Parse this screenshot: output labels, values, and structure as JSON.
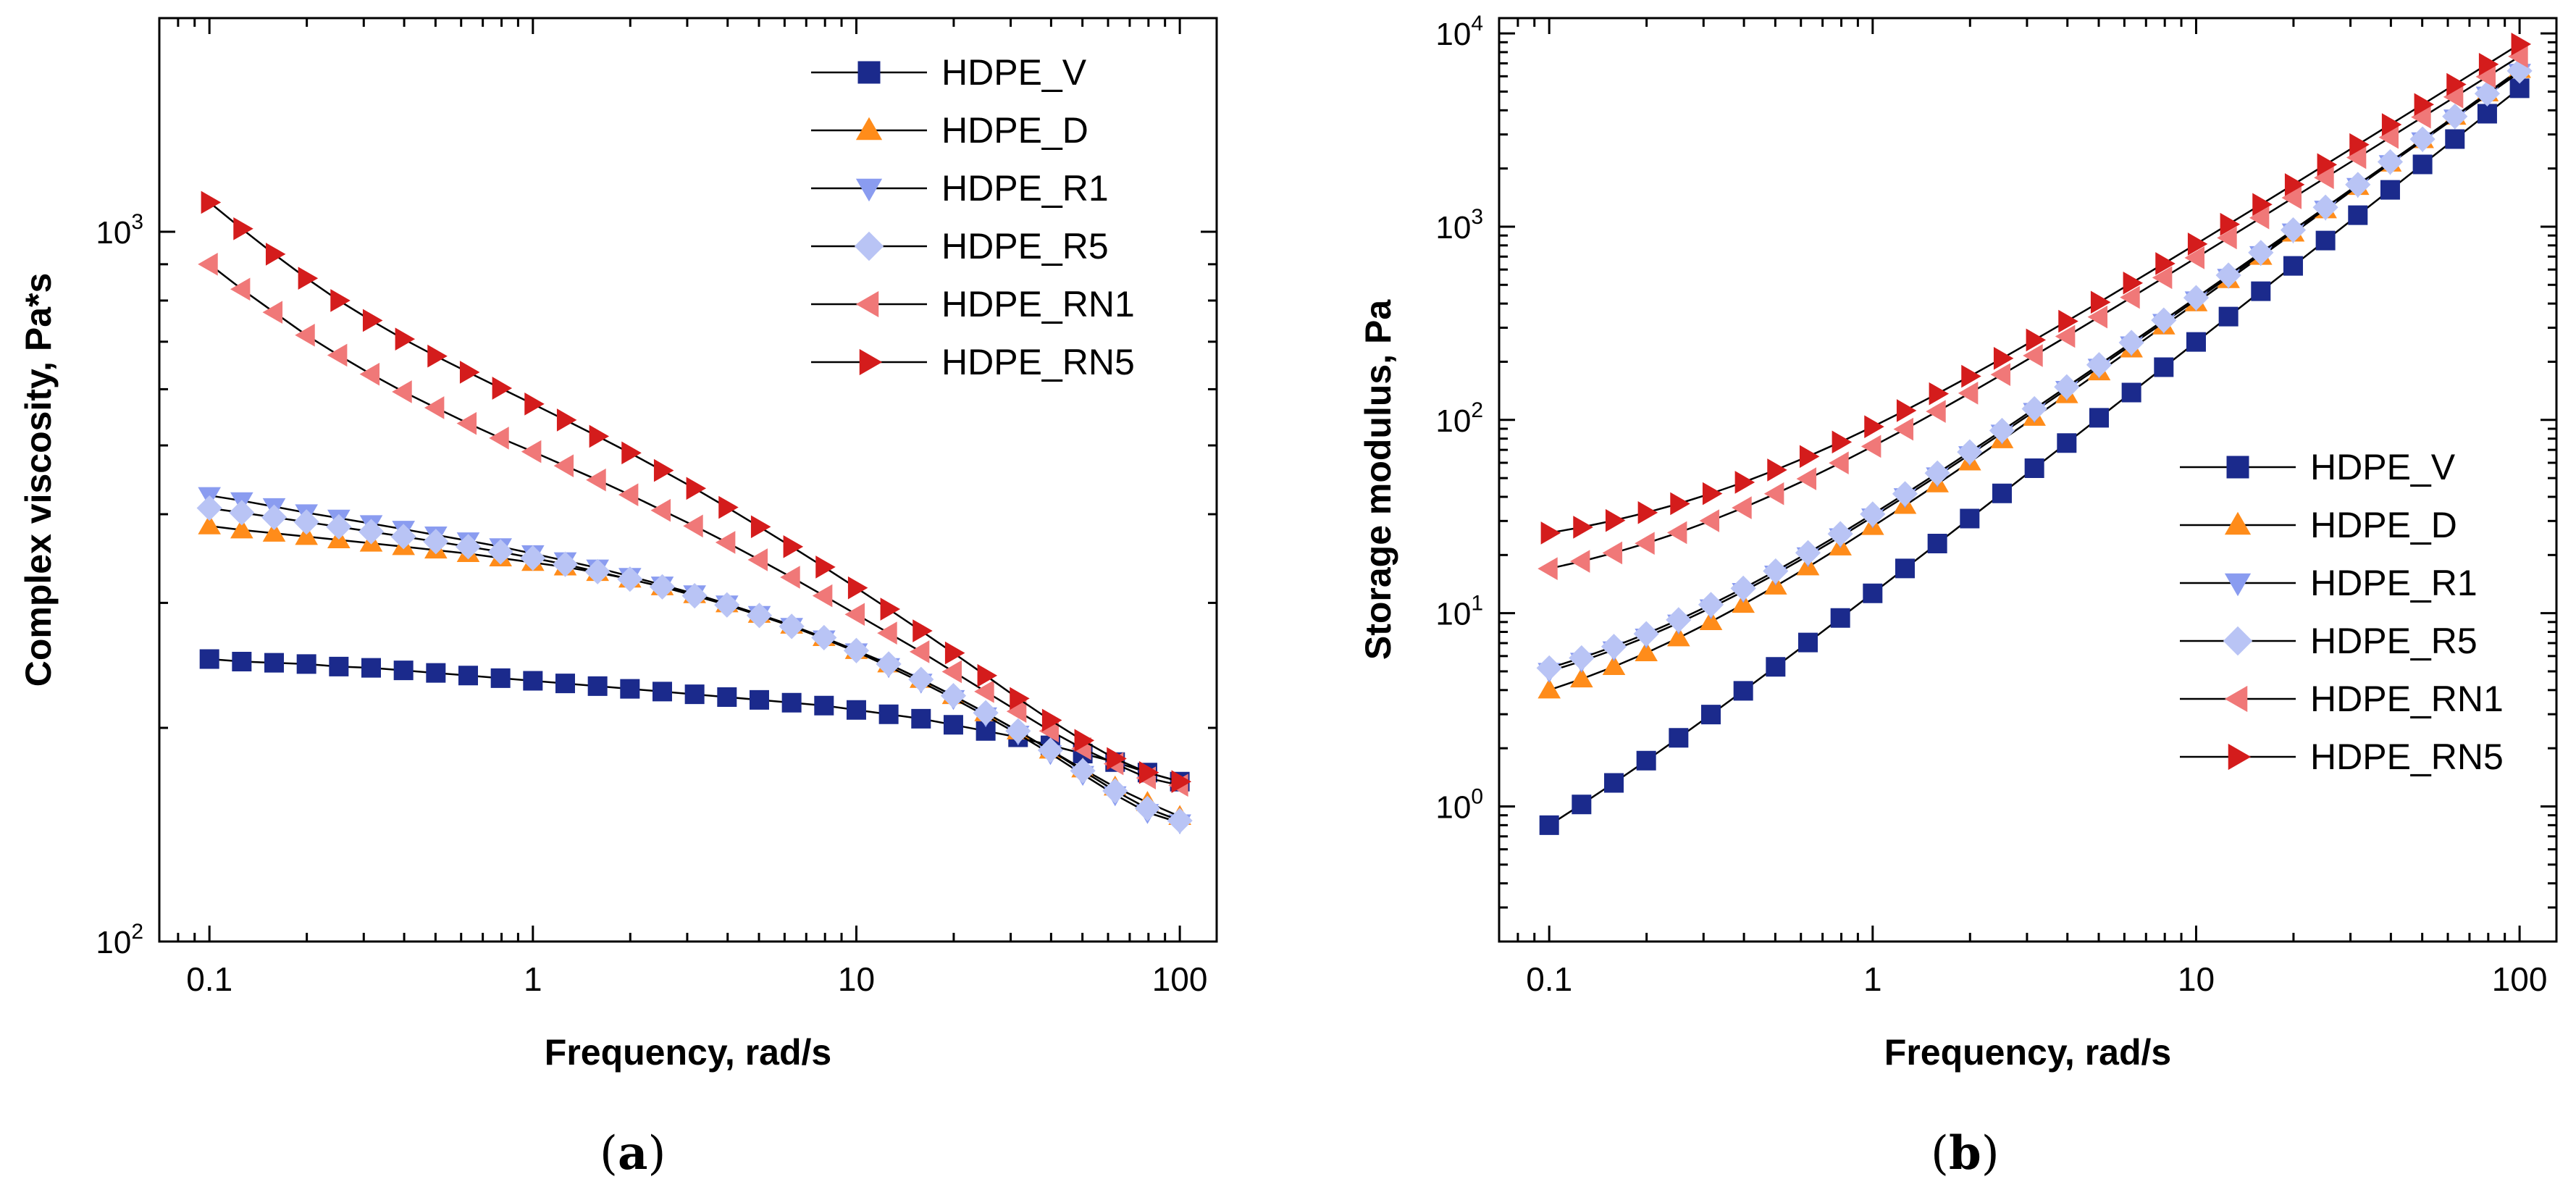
{
  "figure": {
    "caption_a": "a",
    "caption_b": "b"
  },
  "legend": {
    "entries": [
      {
        "key": "V",
        "label": "HDPE_V"
      },
      {
        "key": "D",
        "label": "HDPE_D"
      },
      {
        "key": "R1",
        "label": "HDPE_R1"
      },
      {
        "key": "R5",
        "label": "HDPE_R5"
      },
      {
        "key": "RN1",
        "label": "HDPE_RN1"
      },
      {
        "key": "RN5",
        "label": "HDPE_RN5"
      }
    ]
  },
  "series_styles": {
    "V": {
      "color": "#1b2a8c",
      "marker": "square"
    },
    "D": {
      "color": "#ff8c1a",
      "marker": "triangle-up"
    },
    "R1": {
      "color": "#8a9cf0",
      "marker": "triangle-down"
    },
    "R5": {
      "color": "#b9c4f5",
      "marker": "diamond"
    },
    "RN1": {
      "color": "#f07878",
      "marker": "triangle-left"
    },
    "RN5": {
      "color": "#d41c1c",
      "marker": "triangle-right"
    }
  },
  "chart_data": [
    {
      "id": "a",
      "type": "scatter",
      "xscale": "log",
      "yscale": "log",
      "xlabel": "Frequency, rad/s",
      "ylabel": "Complex viscosity, Pa*s",
      "xlim": [
        0.07,
        130
      ],
      "ylim": [
        100,
        2000
      ],
      "xticks": [
        0.1,
        1,
        10,
        100
      ],
      "xtick_labels": [
        "0.1",
        "1",
        "10",
        "100"
      ],
      "yticks": [
        100,
        1000
      ],
      "ytick_labels": [
        {
          "base": "10",
          "exp": "2"
        },
        {
          "base": "10",
          "exp": "3"
        }
      ],
      "legend_position": "top-right",
      "series": [
        {
          "key": "V",
          "name": "HDPE_V",
          "start": 250,
          "end": 165
        },
        {
          "key": "D",
          "name": "HDPE_D",
          "start": 385,
          "end": 148
        },
        {
          "key": "R1",
          "name": "HDPE_R1",
          "start": 425,
          "end": 145
        },
        {
          "key": "R5",
          "name": "HDPE_R5",
          "start": 408,
          "end": 146
        },
        {
          "key": "RN1",
          "name": "HDPE_RN1",
          "start": 900,
          "end": 163
        },
        {
          "key": "RN5",
          "name": "HDPE_RN5",
          "start": 1100,
          "end": 165
        }
      ]
    },
    {
      "id": "b",
      "type": "scatter",
      "xscale": "log",
      "yscale": "log",
      "xlabel": "Frequency, rad/s",
      "ylabel": "Storage modulus, Pa",
      "xlim": [
        0.07,
        130
      ],
      "ylim": [
        0.2,
        12000
      ],
      "xticks": [
        0.1,
        1,
        10,
        100
      ],
      "xtick_labels": [
        "0.1",
        "1",
        "10",
        "100"
      ],
      "yticks": [
        1,
        10,
        100,
        1000,
        10000
      ],
      "ytick_labels": [
        {
          "base": "10",
          "exp": "0"
        },
        {
          "base": "10",
          "exp": "1"
        },
        {
          "base": "10",
          "exp": "2"
        },
        {
          "base": "10",
          "exp": "3"
        },
        {
          "base": "10",
          "exp": "4"
        }
      ],
      "legend_position": "bottom-right",
      "series": [
        {
          "key": "V",
          "name": "HDPE_V",
          "start": 0.8,
          "end": 5200
        },
        {
          "key": "D",
          "name": "HDPE_D",
          "start": 4.0,
          "end": 6500
        },
        {
          "key": "R1",
          "name": "HDPE_R1",
          "start": 5.0,
          "end": 6300
        },
        {
          "key": "R5",
          "name": "HDPE_R5",
          "start": 5.2,
          "end": 6400
        },
        {
          "key": "RN1",
          "name": "HDPE_RN1",
          "start": 17,
          "end": 7600
        },
        {
          "key": "RN5",
          "name": "HDPE_RN5",
          "start": 26,
          "end": 8800
        }
      ]
    }
  ]
}
